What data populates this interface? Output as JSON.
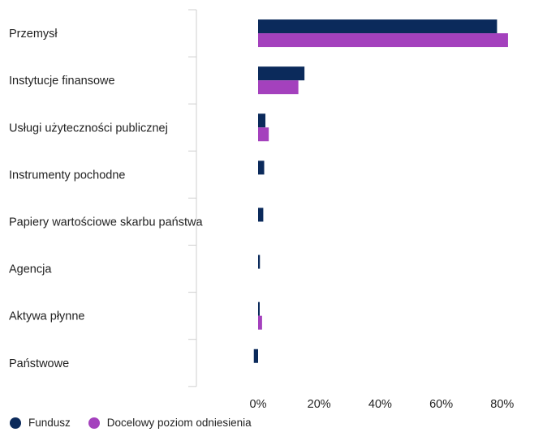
{
  "chart_data": {
    "type": "bar",
    "orientation": "horizontal",
    "categories": [
      "Przemysł",
      "Instytucje finansowe",
      "Usługi użyteczności publicznej",
      "Instrumenty pochodne",
      "Papiery wartościowe skarbu państwa",
      "Agencja",
      "Aktywa płynne",
      "Państwowe"
    ],
    "series": [
      {
        "name": "Fundusz",
        "color": "#0b2a5b",
        "values": [
          78.3,
          15.2,
          2.4,
          2.0,
          1.7,
          0.6,
          0.4,
          -1.4
        ]
      },
      {
        "name": "Docelowy poziom odniesienia",
        "color": "#a441bd",
        "values": [
          81.9,
          13.2,
          3.5,
          0.0,
          0.0,
          0.0,
          1.3,
          0.0
        ]
      }
    ],
    "xlim": [
      -20,
      100
    ],
    "xticks": [
      "0%",
      "20%",
      "40%",
      "60%",
      "80%"
    ],
    "xtick_values": [
      0,
      20,
      40,
      60,
      80
    ],
    "legend_position": "bottom-left",
    "grid": false
  }
}
